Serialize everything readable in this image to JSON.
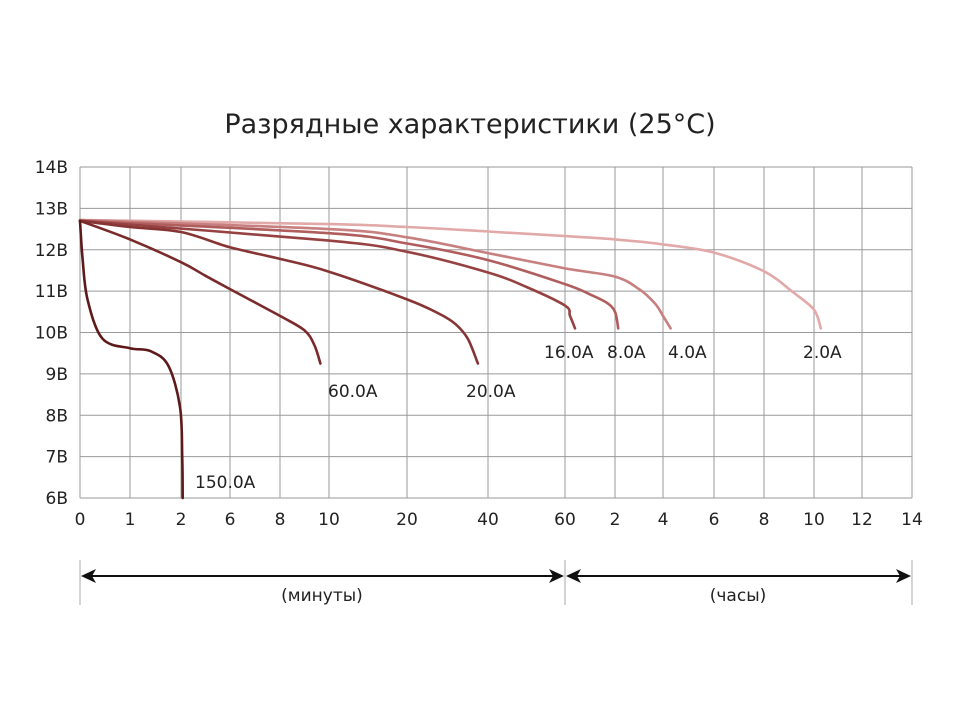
{
  "chart_data": {
    "type": "line",
    "title": "Разрядные характеристики (25°C)",
    "xlabel_segments": [
      "(минуты)",
      "(часы)"
    ],
    "x_unit_note": "x values in minutes",
    "x_ticks": [
      {
        "label": "0",
        "minutes": 0
      },
      {
        "label": "1",
        "minutes": 1
      },
      {
        "label": "2",
        "minutes": 2
      },
      {
        "label": "6",
        "minutes": 6
      },
      {
        "label": "8",
        "minutes": 8
      },
      {
        "label": "10",
        "minutes": 10
      },
      {
        "label": "20",
        "minutes": 20
      },
      {
        "label": "40",
        "minutes": 40
      },
      {
        "label": "60",
        "minutes": 60
      },
      {
        "label": "2",
        "minutes": 120
      },
      {
        "label": "4",
        "minutes": 240
      },
      {
        "label": "6",
        "minutes": 360
      },
      {
        "label": "8",
        "minutes": 480
      },
      {
        "label": "10",
        "minutes": 600
      },
      {
        "label": "12",
        "minutes": 720
      },
      {
        "label": "14",
        "minutes": 840
      }
    ],
    "y_ticks": [
      "6В",
      "7В",
      "8В",
      "9В",
      "10В",
      "11В",
      "12В",
      "13В",
      "14В"
    ],
    "ylim": [
      6,
      14
    ],
    "grid": true,
    "series": [
      {
        "name": "150.0A",
        "color": "#5e1a1a",
        "points": [
          [
            0,
            12.7
          ],
          [
            0.05,
            11.8
          ],
          [
            0.15,
            10.8
          ],
          [
            0.45,
            9.85
          ],
          [
            1.0,
            9.62
          ],
          [
            1.4,
            9.55
          ],
          [
            1.75,
            9.2
          ],
          [
            1.98,
            8.2
          ],
          [
            2.1,
            7.0
          ],
          [
            2.14,
            6.0
          ]
        ]
      },
      {
        "name": "60.0A",
        "color": "#7a2a2a",
        "points": [
          [
            0,
            12.7
          ],
          [
            1,
            12.25
          ],
          [
            2,
            11.7
          ],
          [
            4,
            11.37
          ],
          [
            6,
            11.05
          ],
          [
            8,
            10.4
          ],
          [
            9,
            10.05
          ],
          [
            9.4,
            9.7
          ],
          [
            9.65,
            9.25
          ]
        ]
      },
      {
        "name": "20.0A",
        "color": "#873434",
        "points": [
          [
            0,
            12.7
          ],
          [
            1,
            12.55
          ],
          [
            2,
            12.43
          ],
          [
            6,
            12.06
          ],
          [
            8,
            11.78
          ],
          [
            10,
            11.47
          ],
          [
            20,
            10.8
          ],
          [
            28,
            10.45
          ],
          [
            32,
            10.2
          ],
          [
            35,
            9.85
          ],
          [
            37.5,
            9.25
          ]
        ]
      },
      {
        "name": "16.0A",
        "color": "#974242",
        "points": [
          [
            0,
            12.7
          ],
          [
            10,
            12.22
          ],
          [
            20,
            11.95
          ],
          [
            40,
            11.45
          ],
          [
            50,
            11.1
          ],
          [
            60,
            10.65
          ],
          [
            66,
            10.4
          ],
          [
            72,
            10.1
          ]
        ]
      },
      {
        "name": "8.0A",
        "color": "#b05d5d",
        "points": [
          [
            0,
            12.7
          ],
          [
            10,
            12.4
          ],
          [
            20,
            12.15
          ],
          [
            40,
            11.75
          ],
          [
            60,
            11.17
          ],
          [
            90,
            10.92
          ],
          [
            110,
            10.72
          ],
          [
            120,
            10.5
          ],
          [
            128,
            10.1
          ]
        ]
      },
      {
        "name": "4.0A",
        "color": "#c77f7f",
        "points": [
          [
            0,
            12.72
          ],
          [
            10,
            12.5
          ],
          [
            20,
            12.3
          ],
          [
            40,
            11.92
          ],
          [
            60,
            11.55
          ],
          [
            120,
            11.35
          ],
          [
            180,
            11.05
          ],
          [
            220,
            10.7
          ],
          [
            240,
            10.4
          ],
          [
            258,
            10.1
          ]
        ]
      },
      {
        "name": "2.0A",
        "color": "#e2a9a9",
        "points": [
          [
            0,
            12.72
          ],
          [
            10,
            12.62
          ],
          [
            20,
            12.55
          ],
          [
            40,
            12.44
          ],
          [
            60,
            12.33
          ],
          [
            120,
            12.25
          ],
          [
            240,
            12.13
          ],
          [
            360,
            11.93
          ],
          [
            480,
            11.48
          ],
          [
            550,
            10.97
          ],
          [
            600,
            10.55
          ],
          [
            617,
            10.1
          ]
        ]
      }
    ]
  }
}
